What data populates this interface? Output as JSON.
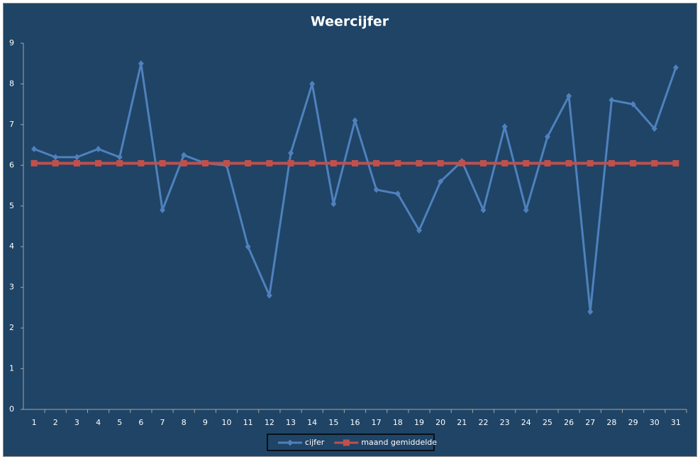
{
  "chart_data": {
    "type": "line",
    "title": "Weercijfer",
    "categories": [
      "1",
      "2",
      "3",
      "4",
      "5",
      "6",
      "7",
      "8",
      "9",
      "10",
      "11",
      "12",
      "13",
      "14",
      "15",
      "16",
      "17",
      "18",
      "19",
      "20",
      "21",
      "22",
      "23",
      "24",
      "25",
      "26",
      "27",
      "28",
      "29",
      "30",
      "31"
    ],
    "series": [
      {
        "name": "cijfer",
        "color": "#4f81bd",
        "marker": "diamond",
        "values": [
          6.4,
          6.2,
          6.2,
          6.4,
          6.2,
          8.5,
          4.9,
          6.25,
          6.05,
          6.0,
          4.0,
          2.8,
          6.3,
          8.0,
          5.05,
          7.1,
          5.4,
          5.3,
          4.4,
          5.6,
          6.1,
          4.9,
          6.95,
          4.9,
          6.7,
          7.7,
          2.4,
          7.6,
          7.5,
          6.9,
          8.4
        ]
      },
      {
        "name": "maand gemiddelde",
        "color": "#c0504d",
        "marker": "square",
        "values": [
          6.05,
          6.05,
          6.05,
          6.05,
          6.05,
          6.05,
          6.05,
          6.05,
          6.05,
          6.05,
          6.05,
          6.05,
          6.05,
          6.05,
          6.05,
          6.05,
          6.05,
          6.05,
          6.05,
          6.05,
          6.05,
          6.05,
          6.05,
          6.05,
          6.05,
          6.05,
          6.05,
          6.05,
          6.05,
          6.05,
          6.05
        ]
      }
    ],
    "ylim": [
      0,
      9
    ],
    "yticks": [
      0,
      1,
      2,
      3,
      4,
      5,
      6,
      7,
      8,
      9
    ],
    "grid": false,
    "legend": "bottom"
  }
}
